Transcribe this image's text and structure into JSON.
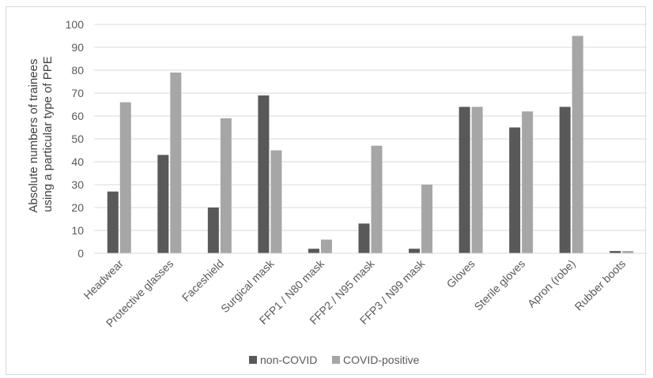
{
  "chart_data": {
    "type": "bar",
    "title": "",
    "xlabel": "",
    "ylabel": "Absolute numbers of trainees using a particular type of PPE",
    "ylabel_lines": [
      "Absolute numbers of trainees",
      "using a particular type of PPE"
    ],
    "ylim": [
      0,
      100
    ],
    "yticks": [
      0,
      10,
      20,
      30,
      40,
      50,
      60,
      70,
      80,
      90,
      100
    ],
    "grid": true,
    "legend_position": "bottom",
    "categories": [
      "Headwear",
      "Protective glasses",
      "Faceshield",
      "Surgical mask",
      "FFP1 / N80 mask",
      "FFP2 / N95 mask",
      "FFP3 / N99 mask",
      "Gloves",
      "Sterile gloves",
      "Apron (robe)",
      "Rubber boots"
    ],
    "series": [
      {
        "name": "non-COVID",
        "color": "#595959",
        "values": [
          27,
          43,
          20,
          69,
          2,
          13,
          2,
          64,
          55,
          64,
          1
        ]
      },
      {
        "name": "COVID-positive",
        "color": "#a6a6a6",
        "values": [
          66,
          79,
          59,
          45,
          6,
          47,
          30,
          64,
          62,
          95,
          1
        ]
      }
    ]
  }
}
